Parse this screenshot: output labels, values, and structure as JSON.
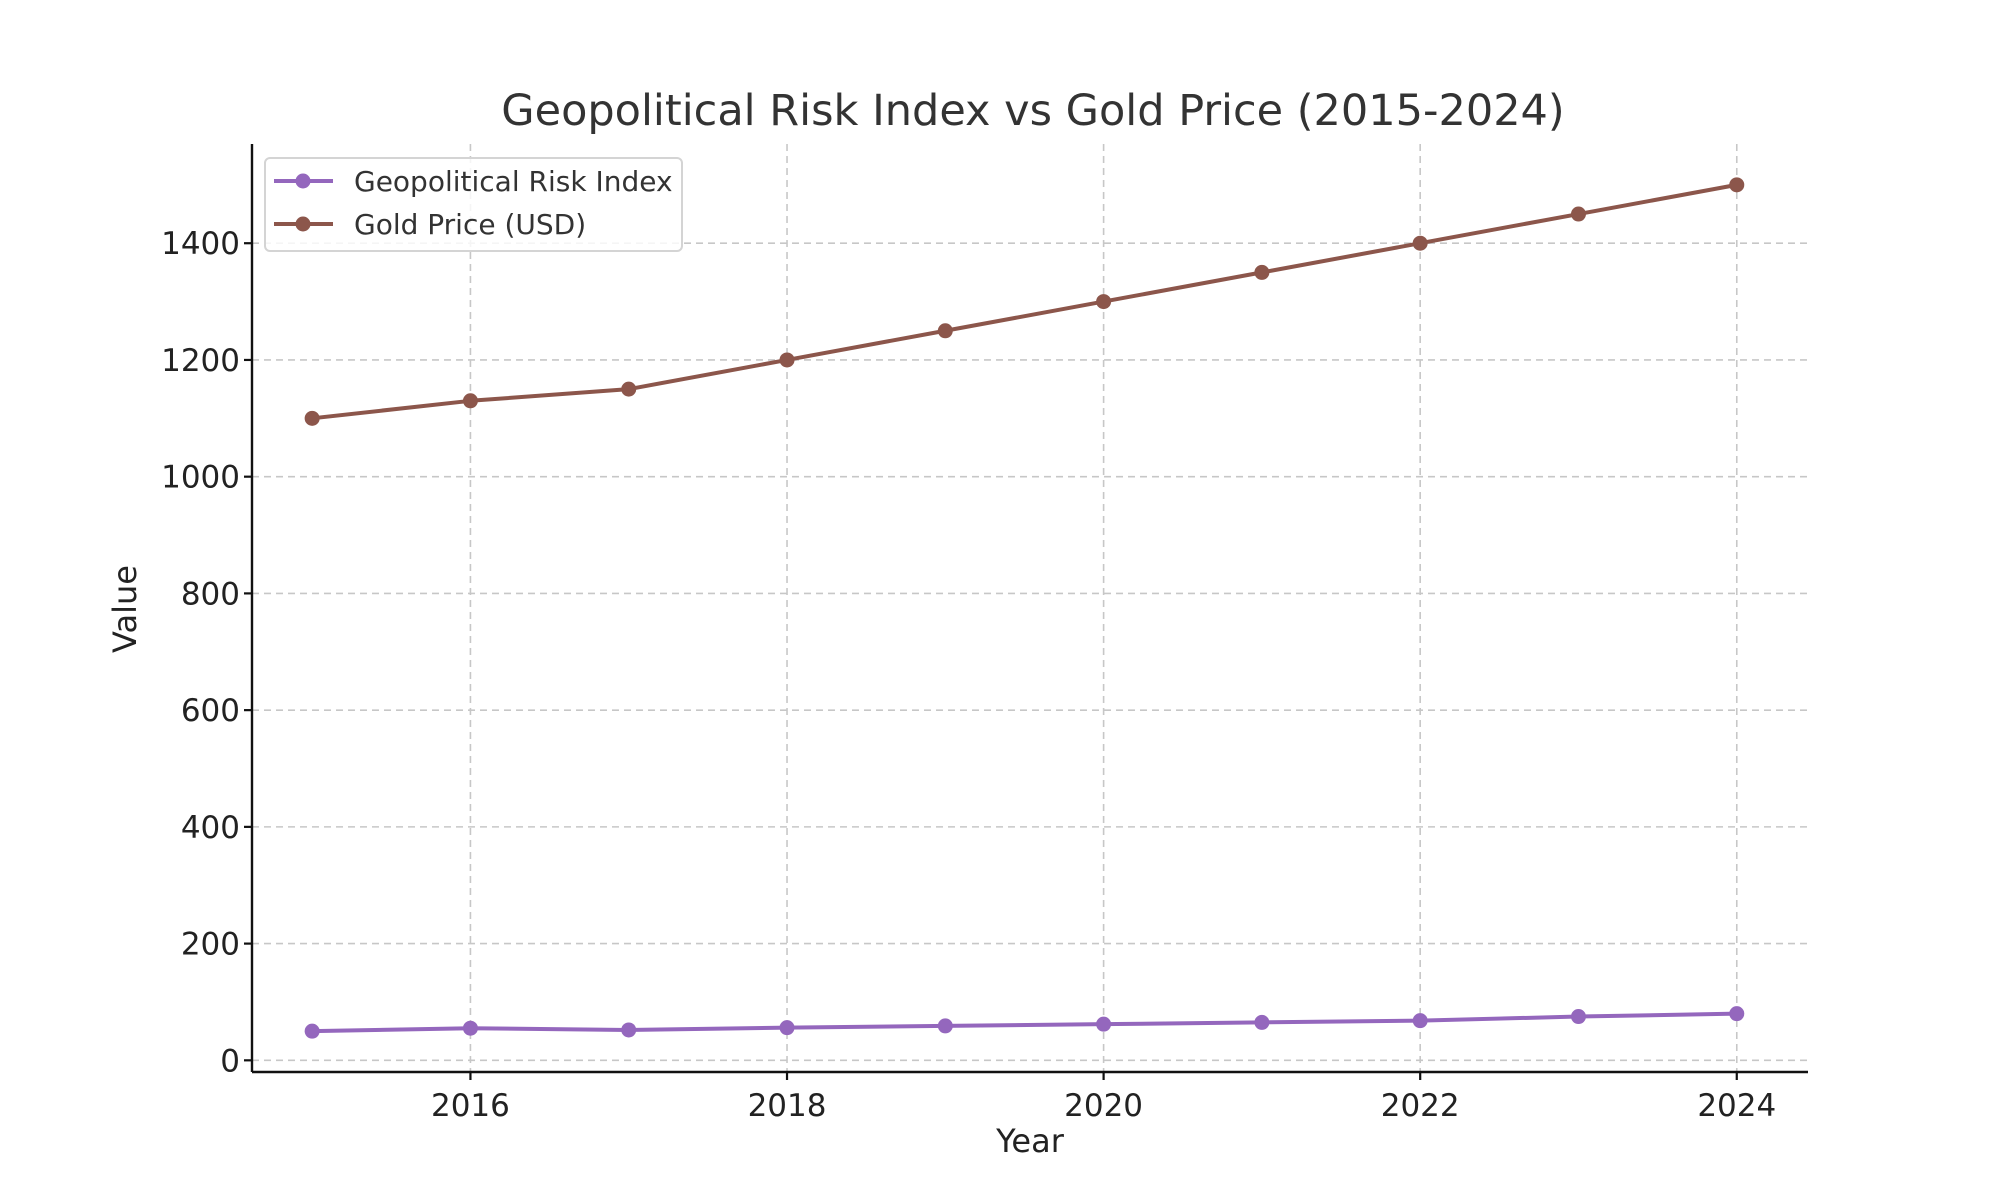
{
  "chart_data": {
    "type": "line",
    "title": "Geopolitical Risk Index vs Gold Price (2015-2024)",
    "xlabel": "Year",
    "ylabel": "Value",
    "x": [
      2015,
      2016,
      2017,
      2018,
      2019,
      2020,
      2021,
      2022,
      2023,
      2024
    ],
    "xlim": [
      2014.62,
      2024.45
    ],
    "ylim": [
      -20,
      1570
    ],
    "x_ticks": [
      2016,
      2018,
      2020,
      2022,
      2024
    ],
    "y_ticks": [
      0,
      200,
      400,
      600,
      800,
      1000,
      1200,
      1400
    ],
    "grid": true,
    "legend_position": "top-left",
    "series": [
      {
        "name": "Geopolitical Risk Index",
        "color": "#9467bd",
        "values": [
          50,
          55,
          52,
          56,
          59,
          62,
          65,
          68,
          75,
          80
        ]
      },
      {
        "name": "Gold Price (USD)",
        "color": "#8c564b",
        "values": [
          1100,
          1130,
          1150,
          1200,
          1250,
          1300,
          1350,
          1400,
          1450,
          1500
        ]
      }
    ]
  }
}
